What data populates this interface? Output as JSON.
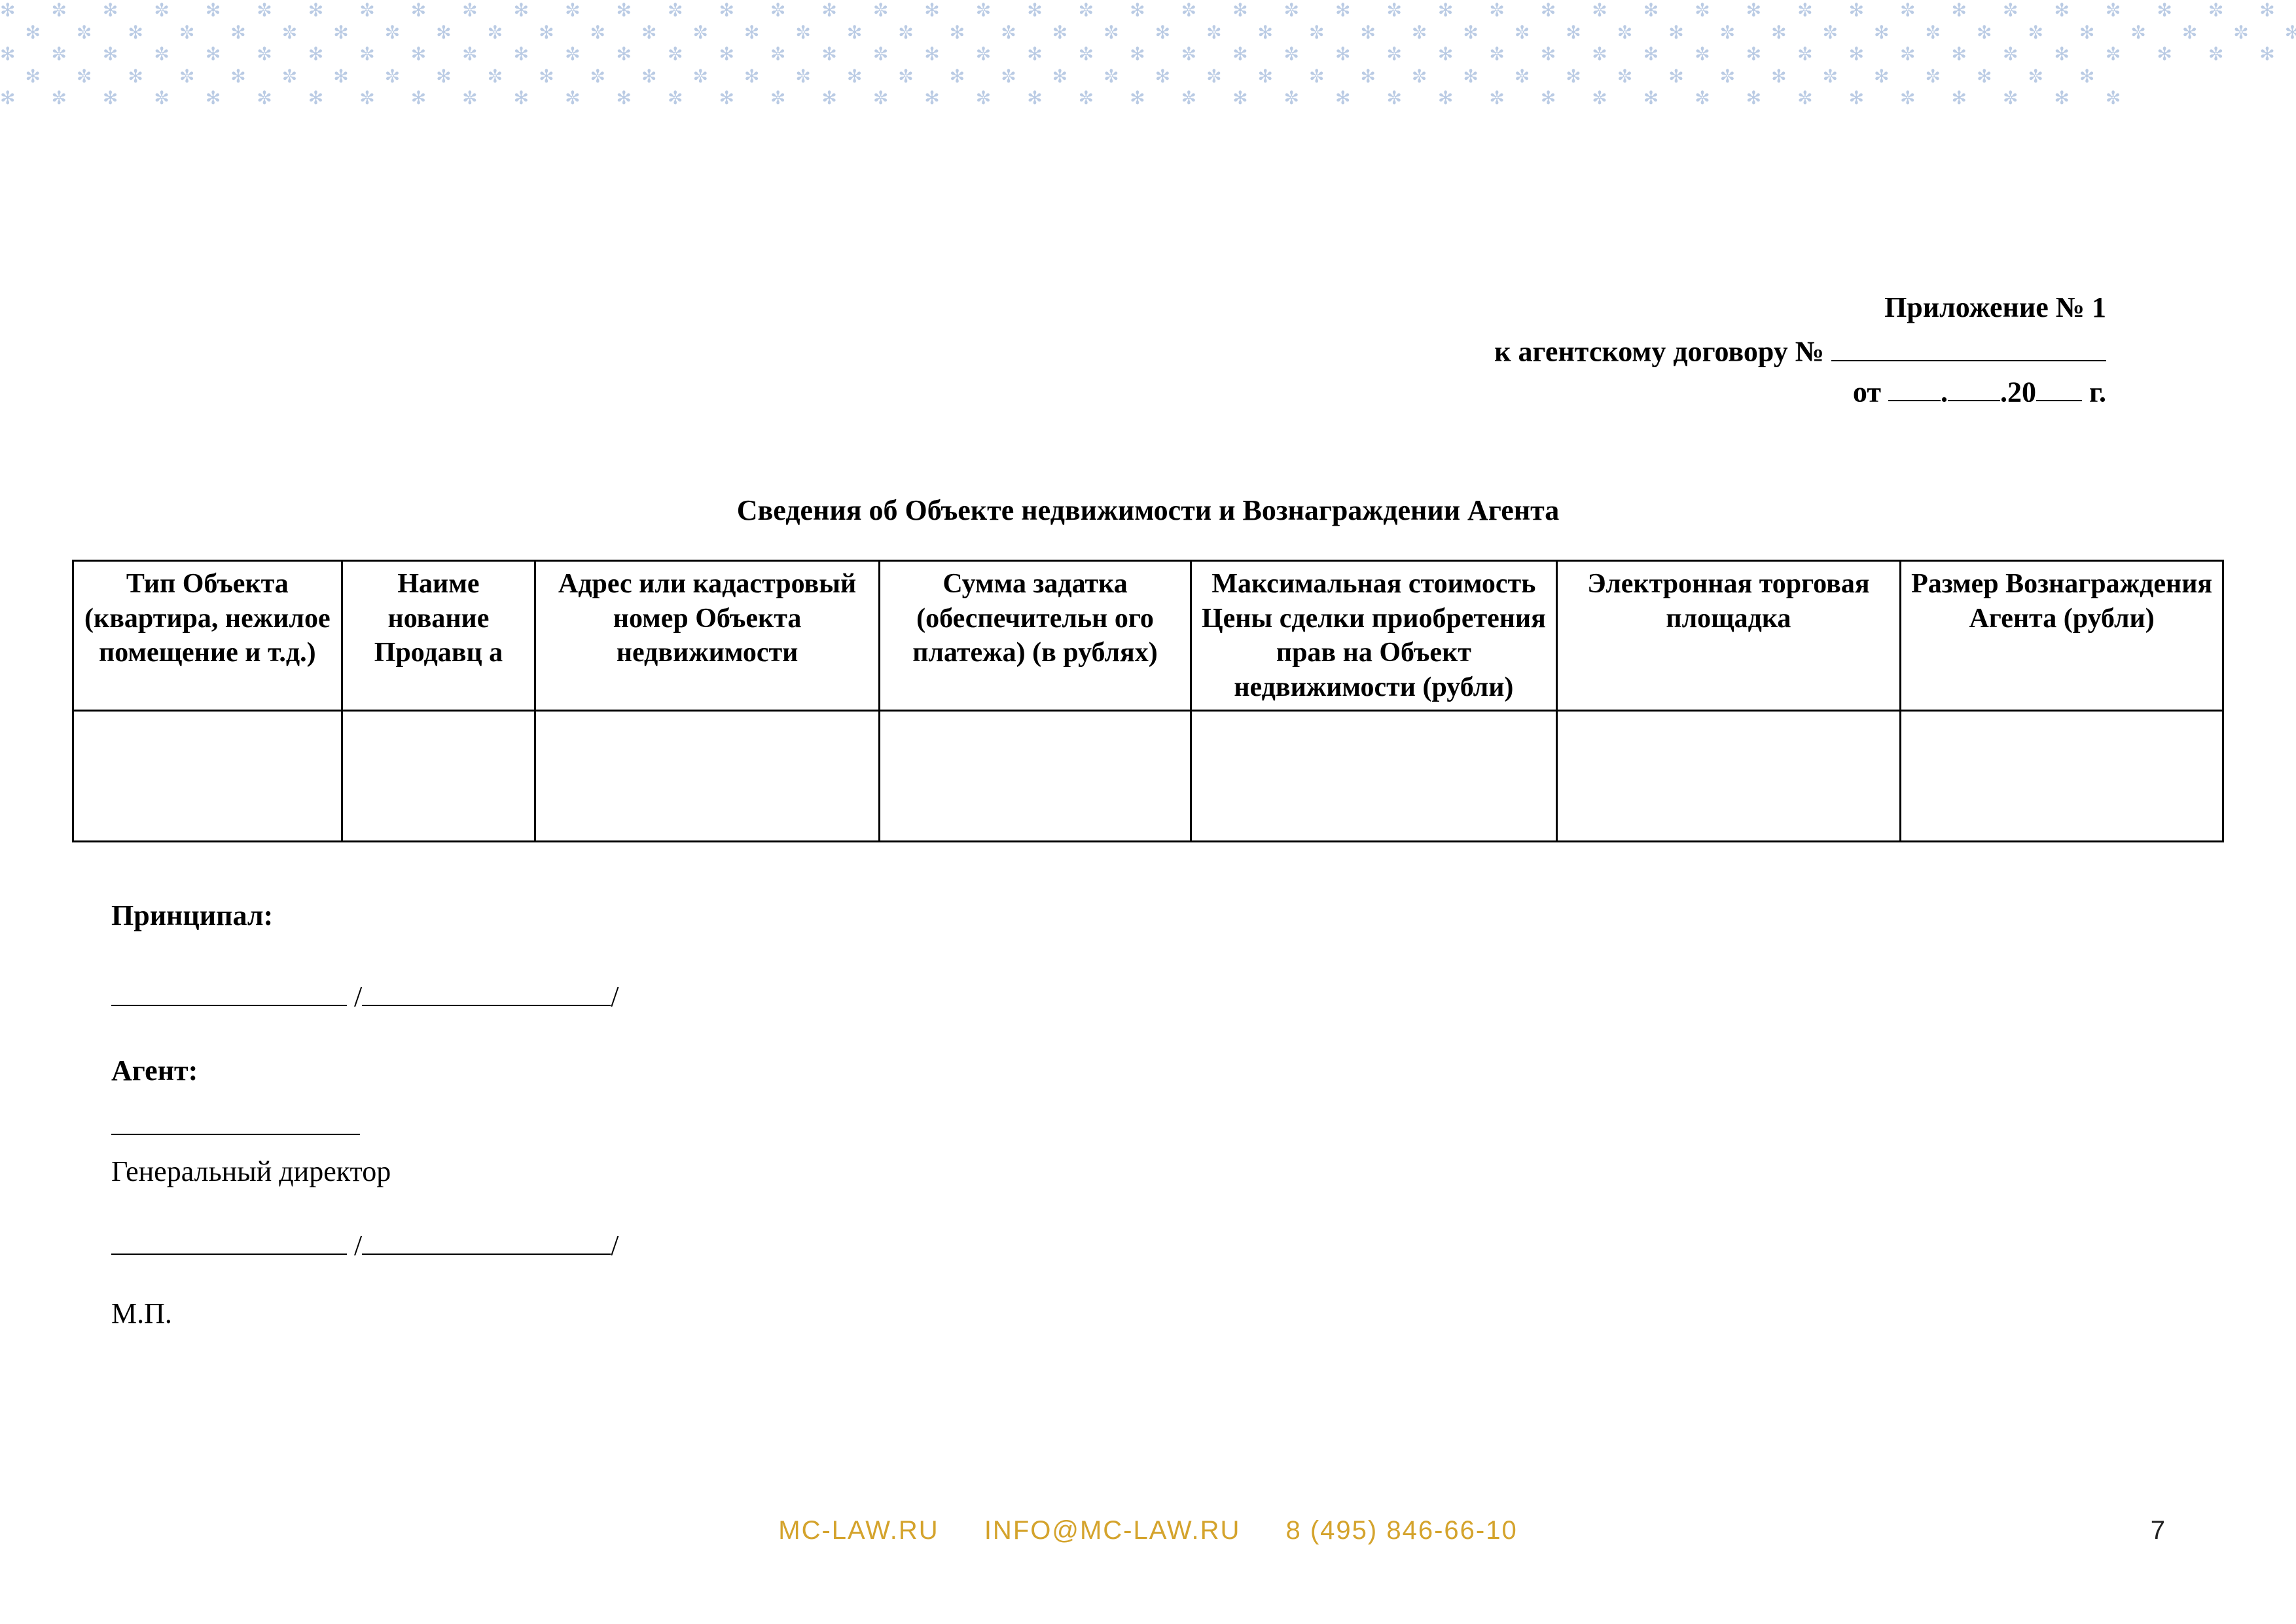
{
  "header": {
    "appendix": "Приложение № 1",
    "contract_prefix": "к агентскому договору №",
    "date_prefix": "от",
    "date_year_prefix": ".20",
    "date_suffix": "г."
  },
  "title": "Сведения об Объекте недвижимости и Вознаграждении Агента",
  "table": {
    "columns": [
      "Тип Объекта (квартира, нежилое помещение и т.д.)",
      "Наиме нование Продавц а",
      "Адрес или кадастровый номер Объекта недвижимости",
      "Сумма задатка (обеспечительн ого платежа) (в рублях)",
      "Максимальная стоимость Цены сделки приобретения прав на Объект недвижимости (рубли)",
      "Электронная торговая площадка",
      "Размер Вознаграждения Агента (рубли)"
    ],
    "col_widths_pct": [
      12.5,
      9,
      16,
      14.5,
      17,
      16,
      15
    ],
    "rows": [
      [
        "",
        "",
        "",
        "",
        "",
        "",
        ""
      ]
    ]
  },
  "signatures": {
    "principal_label": "Принципал:",
    "agent_label": "Агент:",
    "agent_title": "Генеральный директор",
    "stamp": "М.П."
  },
  "footer": {
    "site": "MC-LAW.RU",
    "email": "INFO@MC-LAW.RU",
    "phone": "8 (495) 846-66-10"
  },
  "page_number": "7",
  "colors": {
    "watermark": "#3b6db5",
    "footer_text": "#d4a32c",
    "page_bg": "#ffffff"
  }
}
